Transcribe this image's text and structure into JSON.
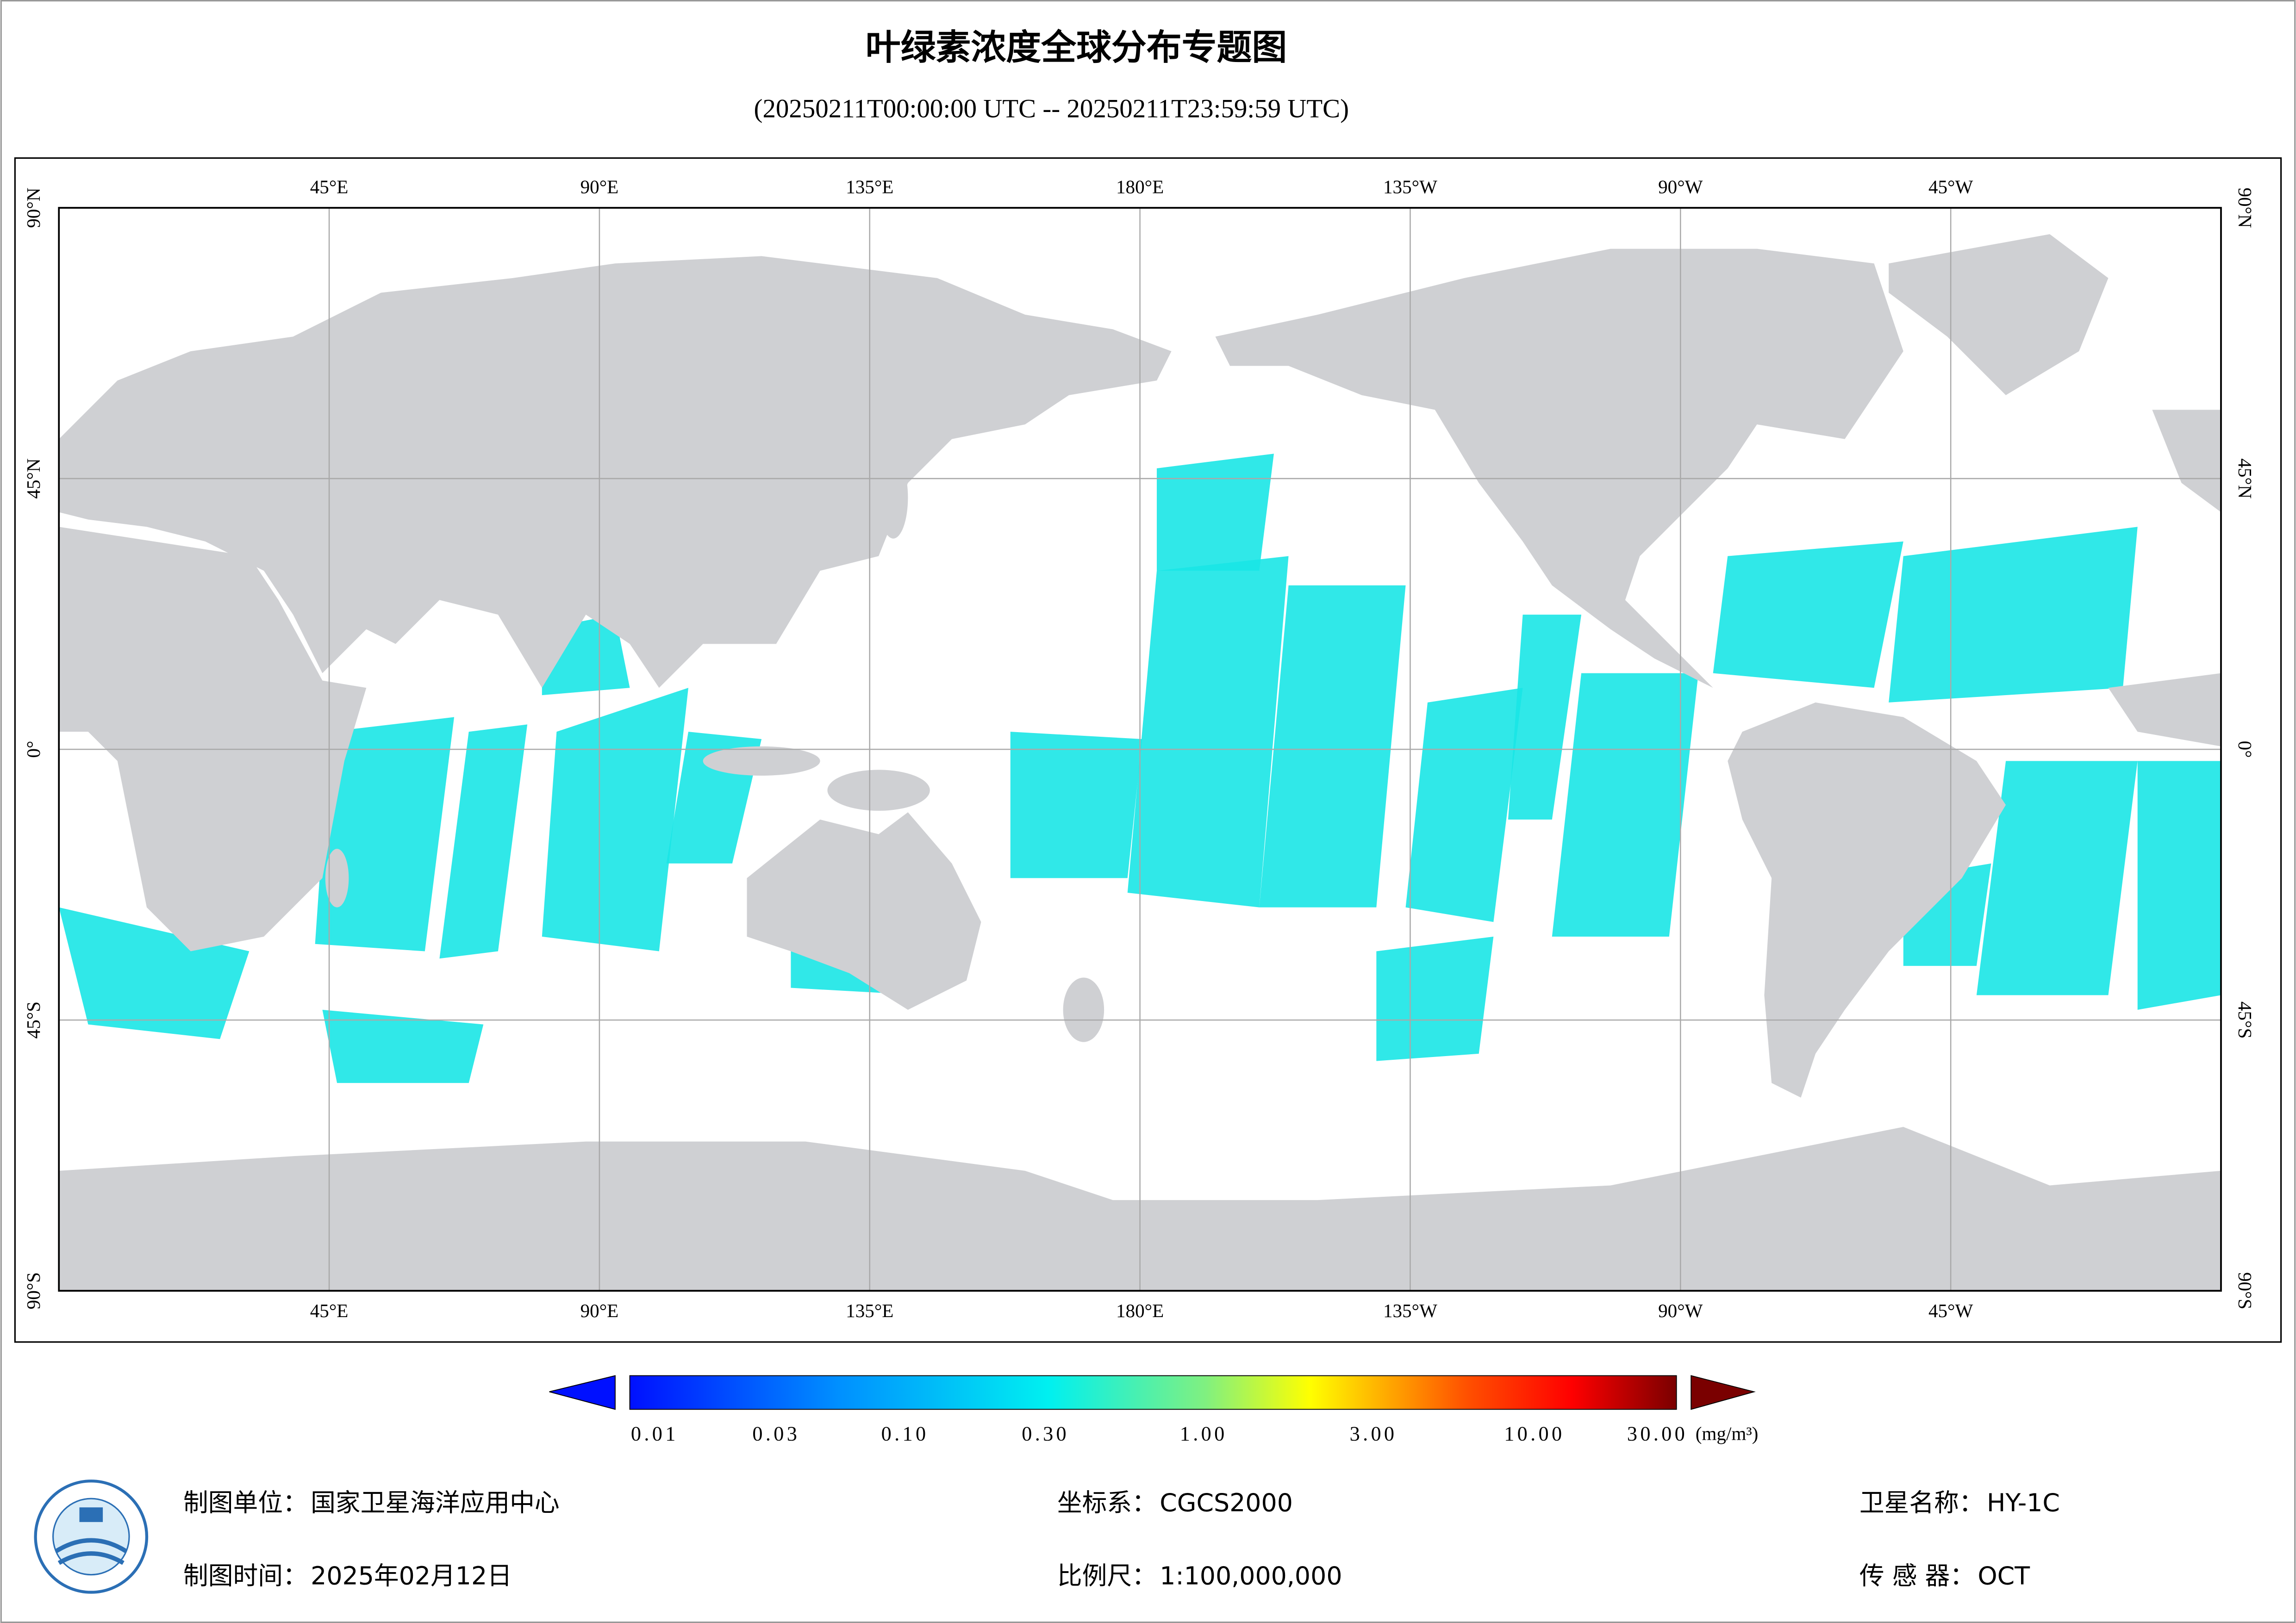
{
  "header": {
    "title": "叶绿素浓度全球分布专题图",
    "subtitle": "(20250211T00:00:00 UTC -- 20250211T23:59:59 UTC)"
  },
  "map": {
    "lon_labels": [
      "45°E",
      "90°E",
      "135°E",
      "180°E",
      "135°W",
      "90°W",
      "45°W"
    ],
    "lat_labels": [
      "90°N",
      "45°N",
      "0°",
      "45°S",
      "90°S"
    ]
  },
  "legend": {
    "ticks": [
      "0.01",
      "0.03",
      "0.10",
      "0.30",
      "1.00",
      "3.00",
      "10.00",
      "30.00"
    ],
    "unit": "(mg/m³)"
  },
  "footer": {
    "unit": {
      "label": "制图单位：",
      "value": "国家卫星海洋应用中心"
    },
    "time": {
      "label": "制图时间：",
      "value": "2025年02月12日"
    },
    "crs": {
      "label": "坐标系：",
      "value": "CGCS2000"
    },
    "scale": {
      "label": "比例尺：",
      "value": "1:100,000,000"
    },
    "satellite": {
      "label": "卫星名称：",
      "value": "HY-1C"
    },
    "sensor": {
      "label": "传 感 器：",
      "value": "OCT"
    }
  }
}
